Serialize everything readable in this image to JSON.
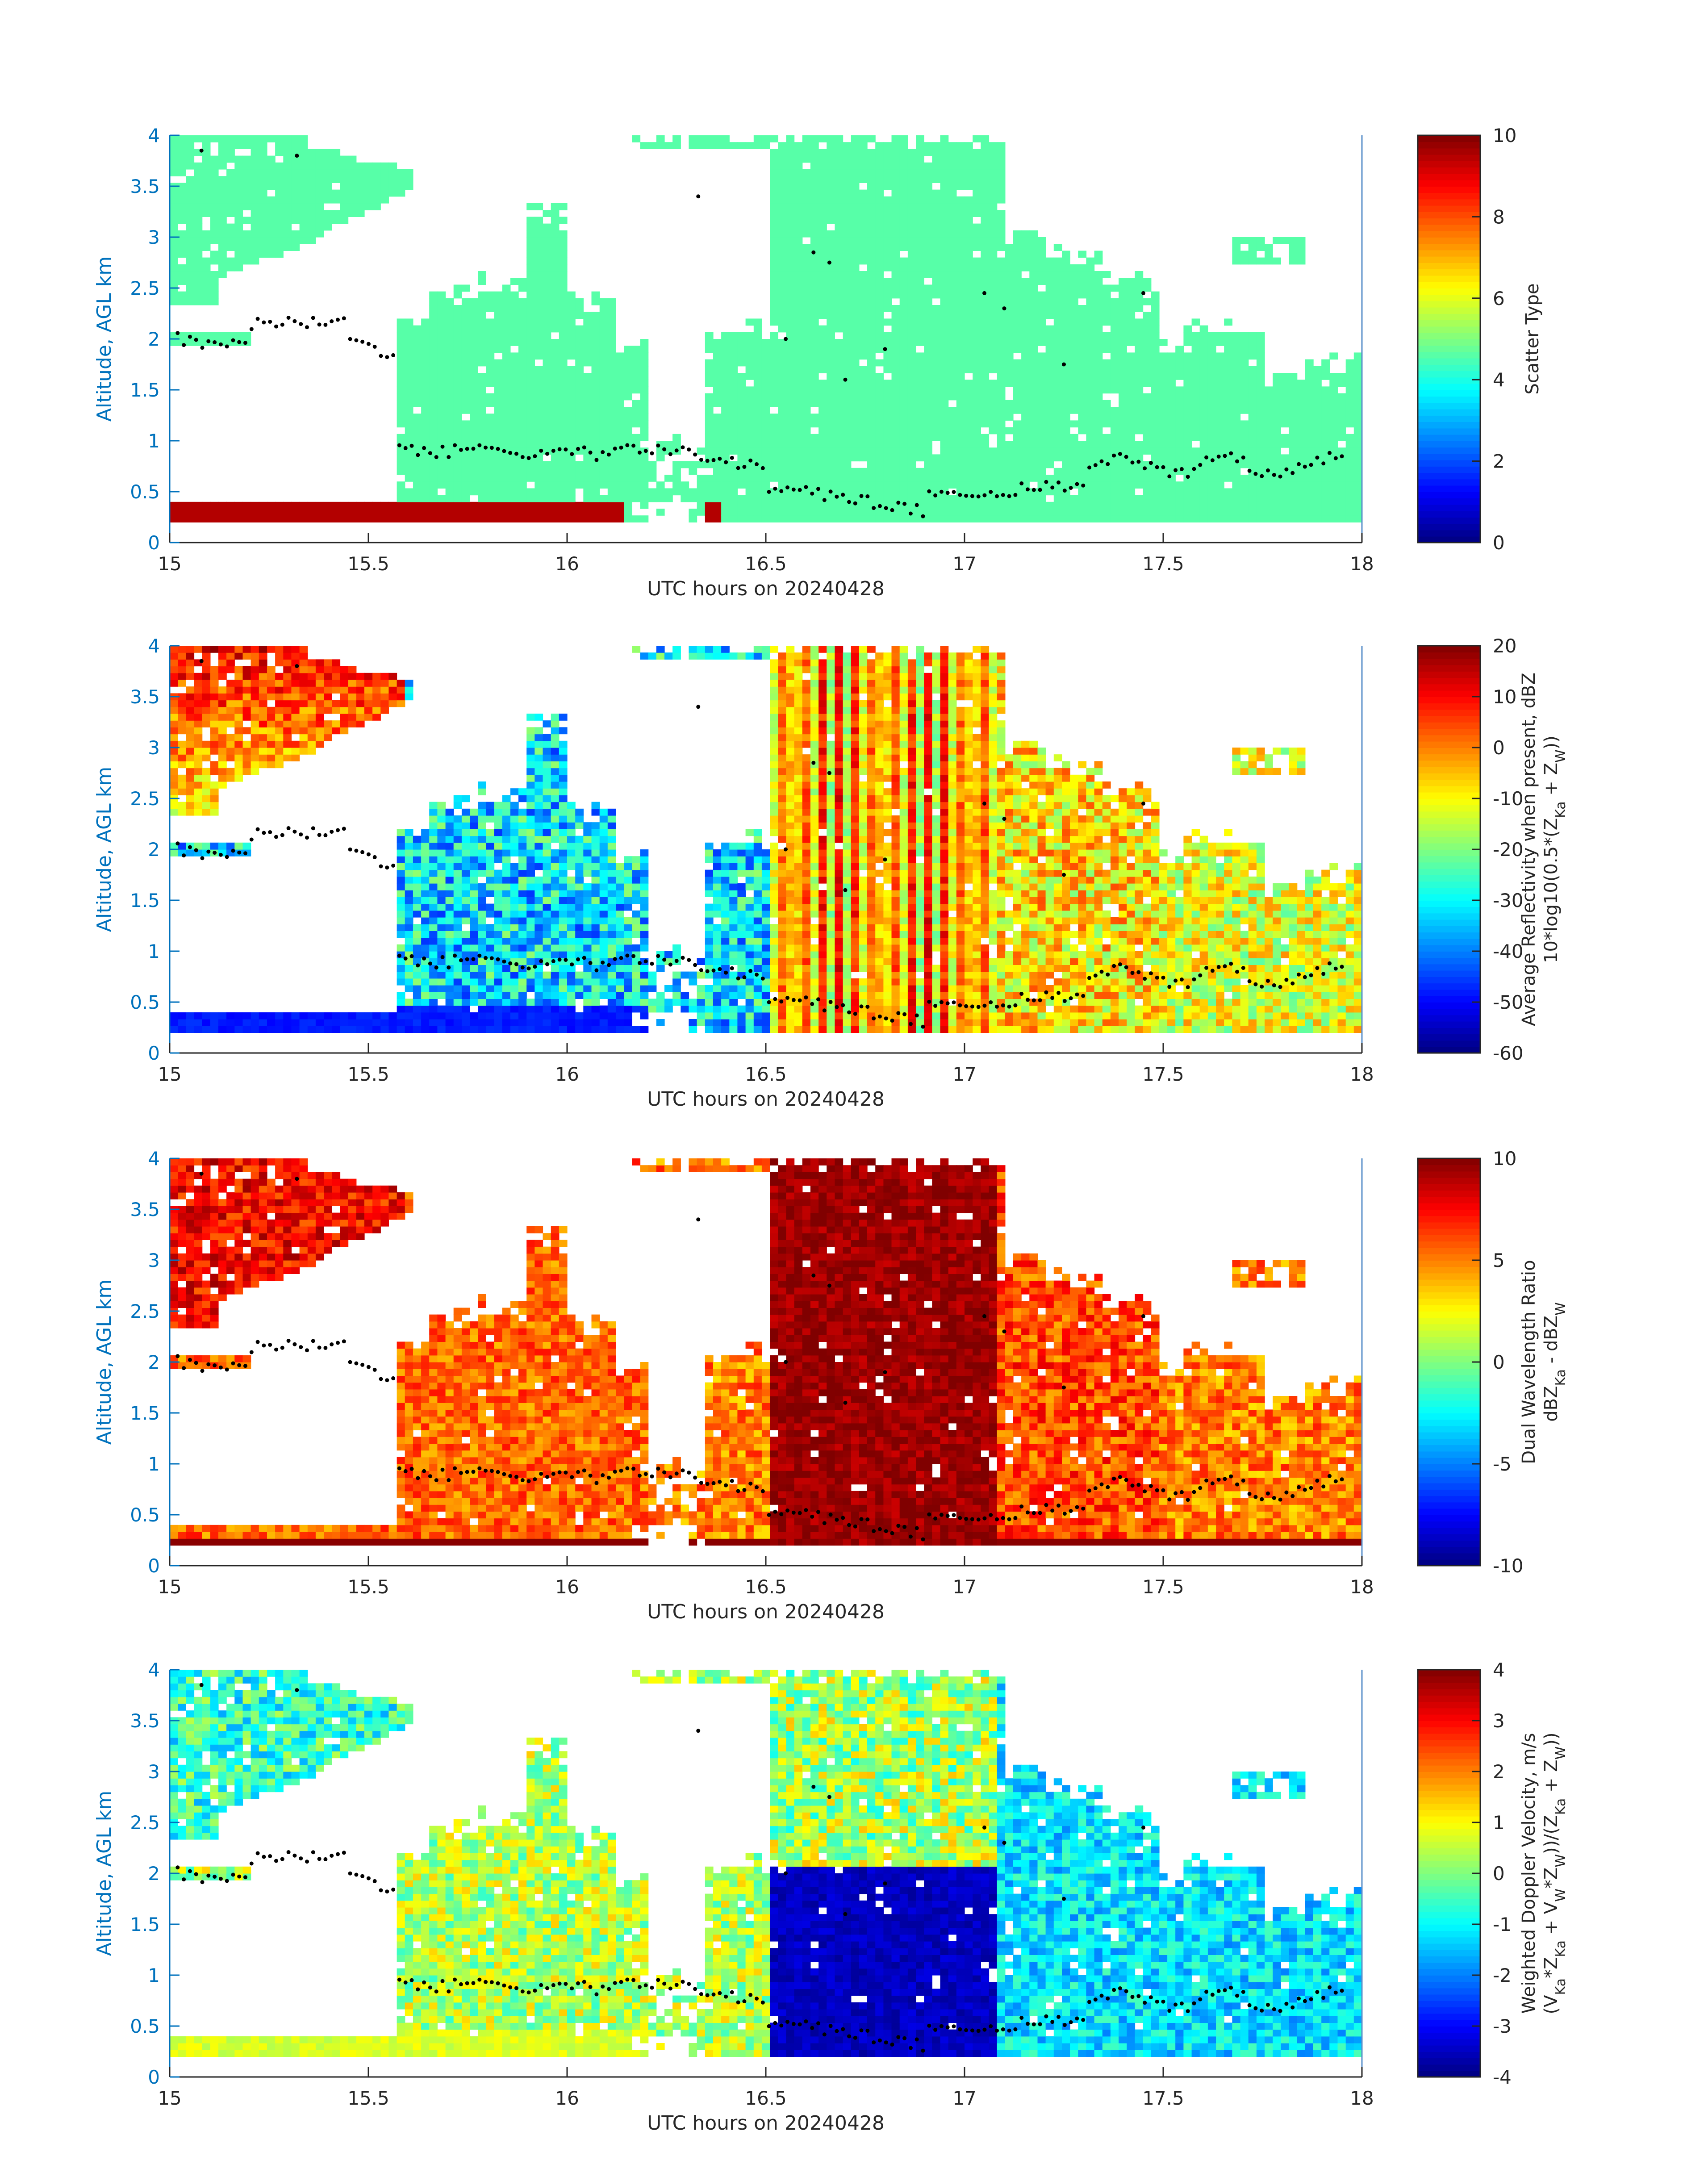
{
  "chart_data": [
    {
      "type": "heatmap",
      "x": [
        15,
        15.5,
        16,
        16.5,
        17,
        17.5,
        18
      ],
      "x_tick_labels": [
        "15",
        "15.5",
        "16",
        "16.5",
        "17",
        "17.5",
        "18"
      ],
      "xlim": [
        15,
        18
      ],
      "xlabel": "UTC hours on 20240428",
      "y_tick_labels": [
        "0",
        "0.5",
        "1",
        "1.5",
        "2",
        "2.5",
        "3",
        "3.5",
        "4"
      ],
      "ylim": [
        0,
        4
      ],
      "ylabel": "Altitude, AGL km",
      "colormap": "jet",
      "colorbar": {
        "label_lines": [
          "Scatter Type"
        ],
        "range": [
          0,
          10
        ],
        "tick_labels": [
          "0",
          "2",
          "4",
          "6",
          "8",
          "10"
        ]
      },
      "overlay": "black dots",
      "field": "scatter"
    },
    {
      "type": "heatmap",
      "x": [
        15,
        15.5,
        16,
        16.5,
        17,
        17.5,
        18
      ],
      "x_tick_labels": [
        "15",
        "15.5",
        "16",
        "16.5",
        "17",
        "17.5",
        "18"
      ],
      "xlim": [
        15,
        18
      ],
      "xlabel": "UTC hours on 20240428",
      "y_tick_labels": [
        "0",
        "0.5",
        "1",
        "1.5",
        "2",
        "2.5",
        "3",
        "3.5",
        "4"
      ],
      "ylim": [
        0,
        4
      ],
      "ylabel": "Altitude, AGL km",
      "colormap": "jet",
      "colorbar": {
        "label_lines": [
          "Average Reflectivity when present, dBZ",
          "10*log10(0.5*(Z",
          "Ka",
          " + Z",
          "W",
          "))"
        ],
        "range": [
          -60,
          20
        ],
        "tick_labels": [
          "-60",
          "-50",
          "-40",
          "-30",
          "-20",
          "-10",
          "0",
          "10",
          "20"
        ]
      },
      "overlay": "black dots",
      "field": "reflectivity"
    },
    {
      "type": "heatmap",
      "x": [
        15,
        15.5,
        16,
        16.5,
        17,
        17.5,
        18
      ],
      "x_tick_labels": [
        "15",
        "15.5",
        "16",
        "16.5",
        "17",
        "17.5",
        "18"
      ],
      "xlim": [
        15,
        18
      ],
      "xlabel": "UTC hours on 20240428",
      "y_tick_labels": [
        "0",
        "0.5",
        "1",
        "1.5",
        "2",
        "2.5",
        "3",
        "3.5",
        "4"
      ],
      "ylim": [
        0,
        4
      ],
      "ylabel": "Altitude, AGL km",
      "colormap": "jet",
      "colorbar": {
        "label_lines": [
          "Dual Wavelength Ratio",
          "dBZ",
          "Ka",
          " - dBZ",
          "W"
        ],
        "range": [
          -10,
          10
        ],
        "tick_labels": [
          "-10",
          "-5",
          "0",
          "5",
          "10"
        ]
      },
      "overlay": "black dots",
      "field": "dwr"
    },
    {
      "type": "heatmap",
      "x": [
        15,
        15.5,
        16,
        16.5,
        17,
        17.5,
        18
      ],
      "x_tick_labels": [
        "15",
        "15.5",
        "16",
        "16.5",
        "17",
        "17.5",
        "18"
      ],
      "xlim": [
        15,
        18
      ],
      "xlabel": "UTC hours on 20240428",
      "y_tick_labels": [
        "0",
        "0.5",
        "1",
        "1.5",
        "2",
        "2.5",
        "3",
        "3.5",
        "4"
      ],
      "ylim": [
        0,
        4
      ],
      "ylabel": "Altitude, AGL km",
      "colormap": "jet",
      "colorbar": {
        "label_lines": [
          "Weighted Doppler Velocity, m/s",
          "(V",
          "Ka",
          "*Z",
          "Ka",
          " + V",
          "W",
          "*Z",
          "W",
          "))/(Z",
          "Ka",
          " + Z",
          "W",
          "))"
        ],
        "range": [
          -4,
          4
        ],
        "tick_labels": [
          "-4",
          "-3",
          "-2",
          "-1",
          "0",
          "1",
          "2",
          "3",
          "4"
        ]
      },
      "overlay": "black dots",
      "field": "velocity"
    }
  ],
  "colors": {
    "axis_label_blue": "#0072BD",
    "tick_gray": "#262626",
    "frame_blue": "#5a8fc9",
    "scatter_cyan": "#1effd8",
    "scatter_red": "#ff4a12"
  }
}
